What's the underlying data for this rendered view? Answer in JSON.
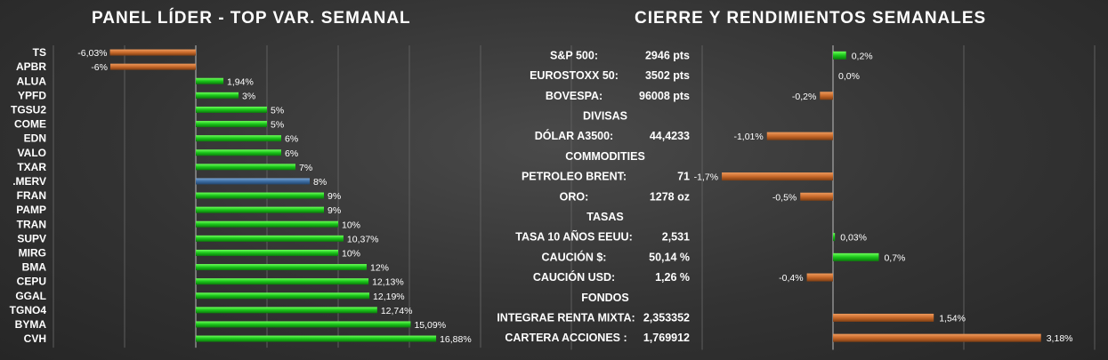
{
  "left_title": "PANEL LÍDER - TOP VAR. SEMANAL",
  "right_title": "CIERRE Y RENDIMIENTOS  SEMANALES",
  "colors": {
    "positive": "#19c419",
    "negative": "#c8692a",
    "highlight": "#3d6da3",
    "grid": "#5e5e5e",
    "axis": "#bdbdbd"
  },
  "chart_data": [
    {
      "type": "bar",
      "orientation": "horizontal",
      "title": "PANEL LÍDER - TOP VAR. SEMANAL",
      "xlim": [
        -10,
        20
      ],
      "grid": true,
      "categories": [
        "TS",
        "APBR",
        "ALUA",
        "YPFD",
        "TGSU2",
        "COME",
        "EDN",
        "VALO",
        "TXAR",
        ".MERV",
        "FRAN",
        "PAMP",
        "TRAN",
        "SUPV",
        "MIRG",
        "BMA",
        "CEPU",
        "GGAL",
        "TGNO4",
        "BYMA",
        "CVH"
      ],
      "values": [
        -6.03,
        -6,
        1.94,
        3,
        5,
        5,
        6,
        6,
        7,
        8,
        9,
        9,
        10,
        10.37,
        10,
        12,
        12.13,
        12.19,
        12.74,
        15.09,
        16.88
      ],
      "value_labels": [
        "-6,03%",
        "-6%",
        "1,94%",
        "3%",
        "5%",
        "5%",
        "6%",
        "6%",
        "7%",
        "8%",
        "9%",
        "9%",
        "10%",
        "10,37%",
        "10%",
        "12%",
        "12,13%",
        "12,19%",
        "12,74%",
        "15,09%",
        "16,88%"
      ],
      "highlight": ".MERV"
    },
    {
      "type": "table",
      "title": "CIERRE Y RENDIMIENTOS  SEMANALES",
      "xlim": [
        -4.5,
        4.5
      ],
      "rows": [
        {
          "kind": "item",
          "label": "S&P 500:",
          "value": "2946 pts",
          "change": 0.2,
          "change_label": "0,2%"
        },
        {
          "kind": "item",
          "label": "EUROSTOXX 50:",
          "value": "3502 pts",
          "change": 0.0,
          "change_label": "0,0%"
        },
        {
          "kind": "item",
          "label": "BOVESPA:",
          "value": "96008 pts",
          "change": -0.2,
          "change_label": "-0,2%"
        },
        {
          "kind": "section",
          "label": "DIVISAS"
        },
        {
          "kind": "item",
          "label": "DÓLAR A3500:",
          "value": "44,4233",
          "change": -1.01,
          "change_label": "-1,01%"
        },
        {
          "kind": "section",
          "label": "COMMODITIES"
        },
        {
          "kind": "item",
          "label": "PETROLEO BRENT:",
          "value": "71",
          "change": -1.7,
          "change_label": "-1,7%"
        },
        {
          "kind": "item",
          "label": "ORO:",
          "value": "1278 oz",
          "change": -0.5,
          "change_label": "-0,5%"
        },
        {
          "kind": "section",
          "label": "TASAS"
        },
        {
          "kind": "item",
          "label": "TASA 10 AÑOS EEUU:",
          "value": "2,531",
          "change": 0.03,
          "change_label": "0,03%"
        },
        {
          "kind": "item",
          "label": "CAUCIÓN $:",
          "value": "50,14 %",
          "change": 0.7,
          "change_label": "0,7%"
        },
        {
          "kind": "item",
          "label": "CAUCIÓN USD:",
          "value": "1,26 %",
          "change": -0.4,
          "change_label": "-0,4%"
        },
        {
          "kind": "section",
          "label": "FONDOS"
        },
        {
          "kind": "item",
          "label": "INTEGRAE RENTA MIXTA:",
          "value": "2,353352",
          "change": 1.54,
          "change_label": "1,54%",
          "series": "fund"
        },
        {
          "kind": "item",
          "label": "CARTERA ACCIONES :",
          "value": "1,769912",
          "change": 3.18,
          "change_label": "3,18%",
          "series": "fund"
        }
      ]
    }
  ]
}
